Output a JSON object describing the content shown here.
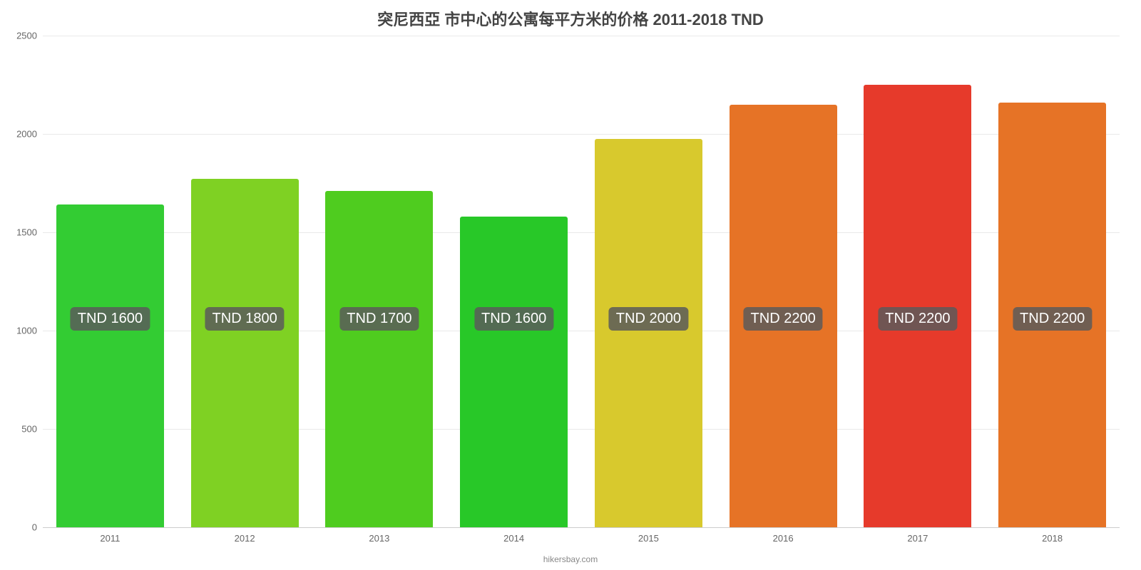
{
  "chart": {
    "type": "bar",
    "title": "突尼西亞 市中心的公寓每平方米的价格 2011-2018 TND",
    "title_fontsize": 22,
    "title_color": "#444444",
    "background_color": "#ffffff",
    "grid_color": "#e9e9e9",
    "axis_color": "#cccccc",
    "tick_fontsize": 13,
    "tick_color": "#666666",
    "attribution": "hikersbay.com",
    "attribution_fontsize": 12,
    "attribution_color": "#888888",
    "ylim": [
      0,
      2500
    ],
    "ytick_step": 500,
    "yticks": [
      "0",
      "500",
      "1000",
      "1500",
      "2000",
      "2500"
    ],
    "bar_width_pct": 80,
    "bar_label_fontsize": 20,
    "bar_label_color": "#ffffff",
    "bar_label_bg": "rgba(90,90,90,0.85)",
    "label_y_value": 1000,
    "categories": [
      "2011",
      "2012",
      "2013",
      "2014",
      "2015",
      "2016",
      "2017",
      "2018"
    ],
    "values": [
      1640,
      1770,
      1710,
      1580,
      1975,
      2150,
      2250,
      2160
    ],
    "bar_colors": [
      "#33cc33",
      "#7fd123",
      "#4fcc1f",
      "#28c828",
      "#d8c92d",
      "#e67326",
      "#e63a2b",
      "#e67326"
    ],
    "bar_labels": [
      "TND 1600",
      "TND 1800",
      "TND 1700",
      "TND 1600",
      "TND 2000",
      "TND 2200",
      "TND 2200",
      "TND 2200"
    ]
  }
}
